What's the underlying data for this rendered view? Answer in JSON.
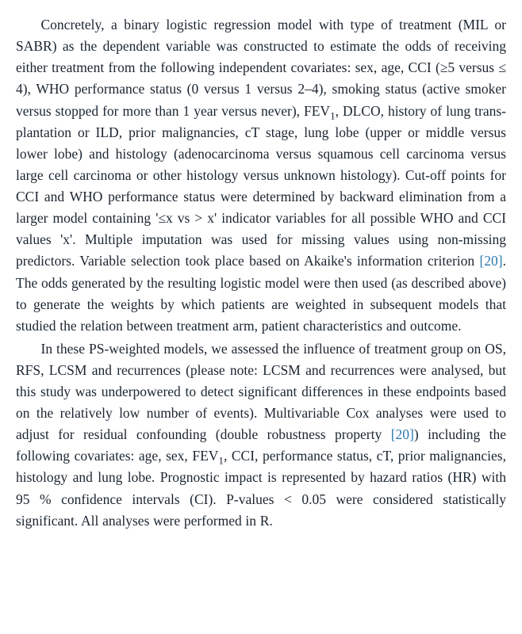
{
  "style": {
    "font_family": "Georgia, serif",
    "font_size_pt": 13,
    "line_height": 1.55,
    "text_color": "#1a2530",
    "cite_color": "#2a7ab0",
    "background_color": "#ffffff",
    "text_align": "justify",
    "text_indent_em": 1.8
  },
  "citations": {
    "ref20a": "[20]",
    "ref20b": "[20]"
  },
  "paragraphs": {
    "p1": {
      "s1": "Concretely, a binary logistic regression model with type of treatment (MIL or SABR) as the dependent variable was constructed to estimate the odds of receiving either treatment from the following independent covariates: sex, age, CCI (≥5 versus ≤ 4), WHO performance status (0 versus 1 versus 2–4), smoking status (active smoker versus stopped for more than 1 year versus never), FEV",
      "sub1": "1",
      "s2": ", DLCO, history of lung trans­plantation or ILD, prior malignancies, cT stage, lung lobe (upper or middle versus lower lobe) and histology (adenocarcinoma versus squa­mous cell carcinoma versus large cell carcinoma or other histology versus unknown histology). Cut-off points for CCI and WHO perfor­mance status were determined by backward elimination from a larger model containing '≤x vs > x' indicator variables for all possible WHO and CCI values 'x'. Multiple imputation was used for missing values using non-missing predictors. Variable selection took place based on Akaike's information criterion ",
      "s3": ". The odds generated by the resulting logistic model were then used (as described above) to generate the weights by which patients are weighted in subsequent models that studied the relation between treatment arm, patient characteristics and outcome."
    },
    "p2": {
      "s1": "In these PS-weighted models, we assessed the influence of treatment group on OS, RFS, LCSM and recurrences (please note: LCSM and re­currences were analysed, but this study was underpowered to detect significant differences in these endpoints based on the relatively low number of events). Multivariable Cox analyses were used to adjust for residual confounding (double robustness property ",
      "s2": ") including the following covariates: age, sex, FEV",
      "sub1": "1",
      "s3": ", CCI, performance status, cT, prior malignancies, histology and lung lobe. Prognostic impact is represented by hazard ratios (HR) with 95 % confidence intervals (CI). P-values < 0.05 were considered statistically significant. All analyses were per­formed in R."
    }
  }
}
